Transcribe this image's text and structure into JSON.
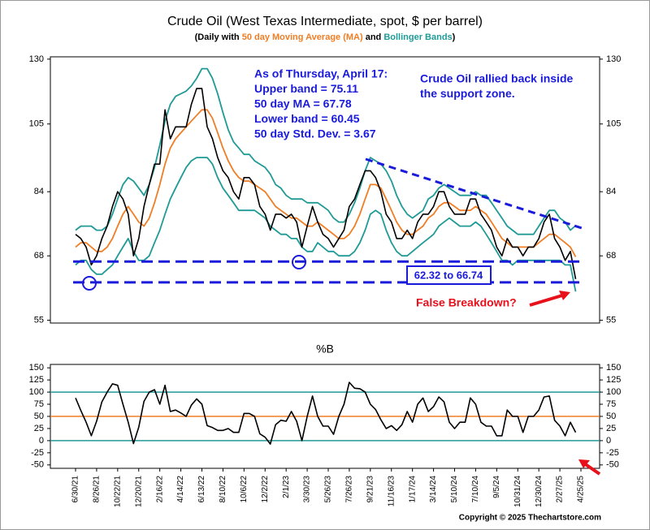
{
  "chart_data": [
    {
      "type": "line",
      "title": "Crude Oil (West Texas Intermediate, spot, $ per barrel)",
      "subtitle_parts": [
        {
          "text": "(Daily with ",
          "color": "#000000"
        },
        {
          "text": "50 day Moving Average (MA)",
          "color": "#f07e26"
        },
        {
          "text": " and ",
          "color": "#000000"
        },
        {
          "text": "Bollinger Bands",
          "color": "#1f9a96"
        },
        {
          "text": ")",
          "color": "#000000"
        }
      ],
      "categories": [
        "6/30/21",
        null,
        null,
        null,
        "8/26/21",
        null,
        null,
        null,
        "10/22/21",
        null,
        null,
        null,
        "12/20/21",
        null,
        null,
        null,
        "2/16/22",
        null,
        null,
        null,
        "4/14/22",
        null,
        null,
        null,
        "6/13/22",
        null,
        null,
        null,
        "8/10/22",
        null,
        null,
        null,
        "10/6/22",
        null,
        null,
        null,
        "12/2/22",
        null,
        null,
        null,
        "2/1/23",
        null,
        null,
        null,
        "3/30/23",
        null,
        null,
        null,
        "5/26/23",
        null,
        null,
        null,
        "7/26/23",
        null,
        null,
        null,
        "9/21/23",
        null,
        null,
        null,
        "11/16/23",
        null,
        null,
        null,
        "1/17/24",
        null,
        null,
        null,
        "3/14/24",
        null,
        null,
        null,
        "5/10/24",
        null,
        null,
        null,
        "7/10/24",
        null,
        null,
        null,
        "9/5/24",
        null,
        null,
        null,
        "10/31/24",
        null,
        null,
        null,
        "12/30/24",
        null,
        null,
        null,
        "2/27/25",
        null,
        null,
        null,
        "4/25/25"
      ],
      "series": [
        {
          "color": "#1f9a96",
          "values": [
            74,
            75,
            75,
            75,
            74,
            74,
            75,
            78,
            82,
            86,
            88,
            87,
            85,
            83,
            86,
            91,
            98,
            106,
            112,
            115,
            116,
            117,
            119,
            122,
            126,
            126,
            122,
            116,
            109,
            103,
            99,
            97,
            95,
            95,
            93,
            92,
            91,
            89,
            86,
            85,
            83,
            82,
            82,
            82,
            81,
            81,
            81,
            80,
            79,
            77,
            76,
            76,
            78,
            81,
            85,
            90,
            94,
            93,
            92,
            90,
            87,
            83,
            80,
            78,
            77,
            78,
            79,
            82,
            83,
            85,
            86,
            85,
            84,
            83,
            83,
            83,
            84,
            83,
            83,
            81,
            79,
            77,
            75,
            74,
            73,
            73,
            73,
            73,
            75,
            77,
            79,
            79,
            77,
            76,
            74,
            75.11,
            null
          ]
        },
        {
          "color": "#1f9a96",
          "values": [
            66,
            67,
            67,
            65,
            64,
            64,
            65,
            66,
            68,
            70,
            72,
            69,
            67,
            67,
            68,
            71,
            74,
            78,
            82,
            85,
            88,
            91,
            93,
            94,
            94,
            94,
            92,
            88,
            85,
            83,
            81,
            79,
            79,
            79,
            79,
            78,
            77,
            75,
            74,
            73,
            73,
            72,
            72,
            70,
            69,
            69,
            71,
            70,
            69,
            69,
            68,
            68,
            68,
            69,
            71,
            74,
            78,
            79,
            78,
            74,
            71,
            69,
            68,
            68,
            69,
            70,
            71,
            72,
            73,
            75,
            76,
            77,
            76,
            75,
            75,
            75,
            76,
            75,
            73,
            71,
            69,
            67,
            67,
            66,
            67,
            67,
            67,
            67,
            67,
            67,
            67,
            67,
            67,
            66,
            66,
            60.45,
            null
          ]
        },
        {
          "color": "#f07e26",
          "values": [
            70,
            71,
            71,
            70,
            69,
            69,
            70,
            72,
            75,
            78,
            80,
            78,
            76,
            75,
            77,
            81,
            86,
            92,
            97,
            100,
            102,
            104,
            106,
            108,
            110,
            110,
            107,
            102,
            97,
            93,
            90,
            88,
            87,
            87,
            86,
            85,
            84,
            82,
            80,
            79,
            78,
            77,
            77,
            76,
            75,
            75,
            76,
            75,
            74,
            73,
            72,
            72,
            73,
            75,
            78,
            82,
            86,
            86,
            85,
            82,
            79,
            76,
            74,
            73,
            73,
            74,
            75,
            77,
            78,
            80,
            81,
            81,
            80,
            79,
            79,
            79,
            80,
            79,
            78,
            76,
            74,
            72,
            71,
            70,
            70,
            70,
            70,
            70,
            71,
            72,
            73,
            73,
            72,
            71,
            70,
            67.78,
            null
          ]
        },
        {
          "color": "#000000",
          "values": [
            73,
            72,
            70,
            66,
            68,
            72,
            75,
            80,
            84,
            82,
            78,
            68,
            72,
            80,
            86,
            92,
            92,
            110,
            100,
            104,
            104,
            104,
            112,
            118,
            118,
            104,
            100,
            94,
            90,
            88,
            84,
            82,
            88,
            88,
            86,
            80,
            78,
            74,
            78,
            78,
            77,
            78,
            76,
            70,
            75,
            80,
            76,
            73,
            72,
            70,
            72,
            74,
            80,
            82,
            86,
            90,
            90,
            88,
            84,
            78,
            76,
            72,
            72,
            74,
            72,
            76,
            78,
            78,
            80,
            84,
            84,
            80,
            78,
            78,
            78,
            82,
            82,
            78,
            76,
            74,
            70,
            68,
            72,
            70,
            70,
            68,
            70,
            70,
            72,
            76,
            78,
            72,
            70,
            67,
            69,
            63,
            null
          ]
        }
      ],
      "ylim": [
        54.5,
        131
      ],
      "yticks": [
        55,
        68,
        84,
        105,
        130
      ],
      "log_scale": true,
      "annotations": {
        "box_lines": [
          "As of Thursday, April 17:",
          "Upper band = 75.11",
          "50 day MA = 67.78",
          "Lower band = 60.45",
          "50 day Std. Dev. = 3.67"
        ],
        "note_lines": [
          "Crude Oil rallied back inside",
          "the support zone."
        ],
        "support_lines": [
          62.32,
          66.74
        ],
        "support_label": "62.32 to 66.74",
        "support_color": "#1a1adb",
        "alert": "False Breakdown?",
        "alert_color": "#e8101a"
      }
    },
    {
      "type": "line",
      "title": "%B",
      "series": [
        {
          "color": "#000000",
          "values": [
            88,
            62,
            38,
            10,
            40,
            80,
            100,
            117,
            114,
            75,
            38,
            -6,
            28,
            81,
            100,
            105,
            75,
            114,
            60,
            63,
            57,
            50,
            73,
            86,
            75,
            31,
            27,
            21,
            21,
            25,
            17,
            17,
            56,
            56,
            50,
            14,
            7,
            -7,
            33,
            42,
            40,
            60,
            40,
            0,
            50,
            92,
            50,
            30,
            30,
            13,
            50,
            75,
            120,
            108,
            107,
            100,
            75,
            64,
            43,
            25,
            31,
            21,
            33,
            60,
            38,
            75,
            88,
            60,
            70,
            90,
            80,
            38,
            25,
            38,
            38,
            88,
            75,
            38,
            30,
            30,
            10,
            10,
            63,
            50,
            50,
            17,
            50,
            50,
            63,
            90,
            92,
            42,
            30,
            10,
            38,
            17,
            null
          ]
        }
      ],
      "reference_lines": [
        {
          "value": 100,
          "color": "#1f9a96"
        },
        {
          "value": 50,
          "color": "#f07e26"
        },
        {
          "value": 0,
          "color": "#1f9a96"
        }
      ],
      "ylim": [
        -57,
        157
      ],
      "yticks": [
        -50,
        -25,
        0,
        25,
        50,
        75,
        100,
        125,
        150
      ],
      "copyright": "Copyright © 2025 Thechartstore.com"
    }
  ]
}
